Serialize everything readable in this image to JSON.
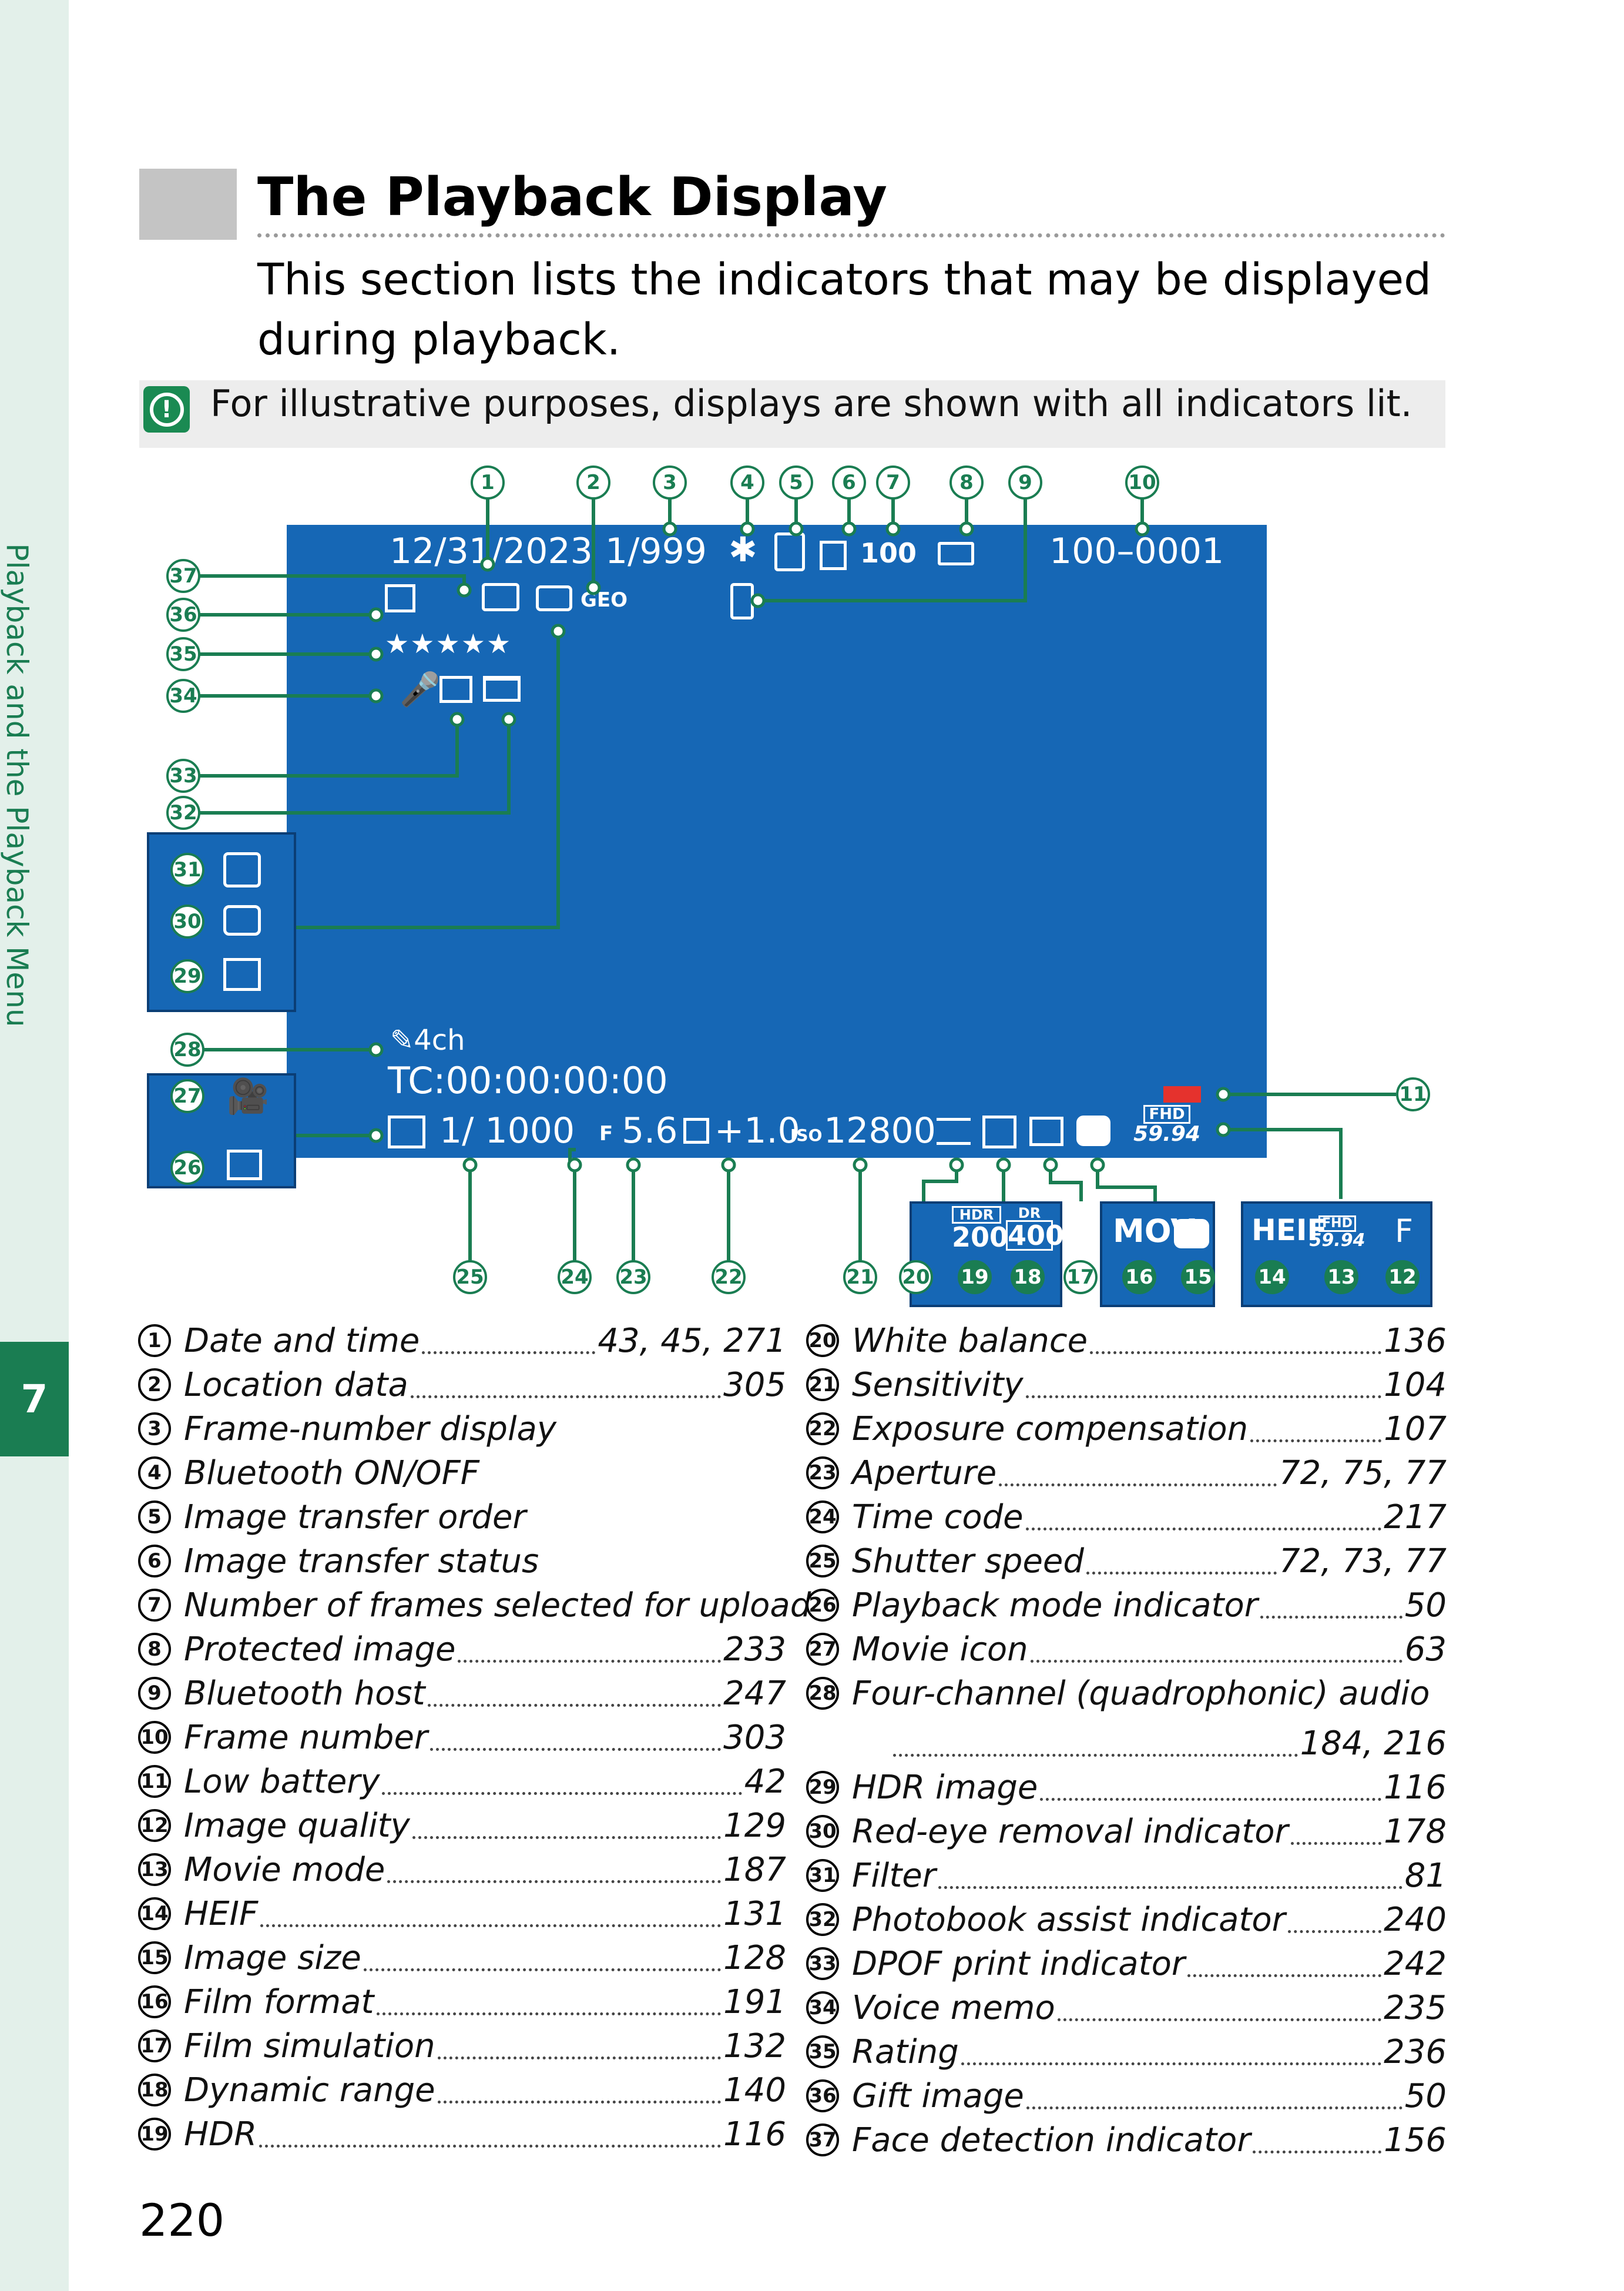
{
  "chapter": {
    "number": "7",
    "title": "Playback and the Playback Menu"
  },
  "section": {
    "title": "The Playback Display",
    "intro": "This section lists the indicators that may be displayed during playback.",
    "note": "For illustrative purposes, displays are shown with all indicators lit."
  },
  "screen": {
    "date": "12/31/2023",
    "frame_count": "1/999",
    "upload_count": "100",
    "frame_number": "100–0001",
    "geo": "GEO",
    "audio": "4ch",
    "timecode": "TC:00:00:00:00",
    "shutter": "1/ 1000",
    "aperture": "5.6",
    "exposure": "+1.0",
    "iso_label": "ISO",
    "iso": "12800",
    "movie_mode_top": "FHD",
    "movie_mode_bottom": "59.94",
    "stars": "★★★★★"
  },
  "insets": {
    "hdr_label": "HDR",
    "hdr_value": "200",
    "dr_label": "DR",
    "dr_value": "400",
    "film_format": "MOV",
    "heif": "HEIF",
    "quality": "F"
  },
  "callouts": [
    "1",
    "2",
    "3",
    "4",
    "5",
    "6",
    "7",
    "8",
    "9",
    "10",
    "11",
    "12",
    "13",
    "14",
    "15",
    "16",
    "17",
    "18",
    "19",
    "20",
    "21",
    "22",
    "23",
    "24",
    "25",
    "26",
    "27",
    "28",
    "29",
    "30",
    "31",
    "32",
    "33",
    "34",
    "35",
    "36",
    "37"
  ],
  "legend_left": [
    {
      "n": "1",
      "label": "Date and time",
      "pages": "43, 45, 271"
    },
    {
      "n": "2",
      "label": "Location data",
      "pages": "305"
    },
    {
      "n": "3",
      "label": "Frame-number display",
      "pages": ""
    },
    {
      "n": "4",
      "label": "Bluetooth ON/OFF",
      "pages": ""
    },
    {
      "n": "5",
      "label": "Image transfer order",
      "pages": ""
    },
    {
      "n": "6",
      "label": "Image transfer status",
      "pages": ""
    },
    {
      "n": "7",
      "label": "Number of frames selected for upload",
      "pages": ""
    },
    {
      "n": "8",
      "label": "Protected image",
      "pages": "233"
    },
    {
      "n": "9",
      "label": "Bluetooth host",
      "pages": "247"
    },
    {
      "n": "10",
      "label": "Frame number",
      "pages": "303"
    },
    {
      "n": "11",
      "label": "Low battery",
      "pages": "42"
    },
    {
      "n": "12",
      "label": "Image quality",
      "pages": "129"
    },
    {
      "n": "13",
      "label": "Movie mode",
      "pages": "187"
    },
    {
      "n": "14",
      "label": "HEIF",
      "pages": "131"
    },
    {
      "n": "15",
      "label": "Image size",
      "pages": "128"
    },
    {
      "n": "16",
      "label": "Film format",
      "pages": "191"
    },
    {
      "n": "17",
      "label": "Film simulation",
      "pages": "132"
    },
    {
      "n": "18",
      "label": "Dynamic range",
      "pages": "140"
    },
    {
      "n": "19",
      "label": "HDR",
      "pages": "116"
    }
  ],
  "legend_right": [
    {
      "n": "20",
      "label": "White balance",
      "pages": "136"
    },
    {
      "n": "21",
      "label": "Sensitivity",
      "pages": "104"
    },
    {
      "n": "22",
      "label": "Exposure compensation",
      "pages": "107"
    },
    {
      "n": "23",
      "label": "Aperture",
      "pages": "72, 75, 77"
    },
    {
      "n": "24",
      "label": "Time code",
      "pages": "217"
    },
    {
      "n": "25",
      "label": "Shutter speed",
      "pages": "72, 73, 77"
    },
    {
      "n": "26",
      "label": "Playback mode indicator",
      "pages": "50"
    },
    {
      "n": "27",
      "label": "Movie icon",
      "pages": "63"
    },
    {
      "n": "28",
      "label": "Four-channel (quadrophonic) audio",
      "pages": ""
    },
    {
      "n": "",
      "label": "",
      "pages": "184, 216"
    },
    {
      "n": "29",
      "label": "HDR image",
      "pages": "116"
    },
    {
      "n": "30",
      "label": "Red-eye removal indicator",
      "pages": "178"
    },
    {
      "n": "31",
      "label": "Filter",
      "pages": "81"
    },
    {
      "n": "32",
      "label": "Photobook assist indicator",
      "pages": "240"
    },
    {
      "n": "33",
      "label": "DPOF print indicator",
      "pages": "242"
    },
    {
      "n": "34",
      "label": "Voice memo",
      "pages": "235"
    },
    {
      "n": "35",
      "label": "Rating",
      "pages": "236"
    },
    {
      "n": "36",
      "label": "Gift image",
      "pages": "50"
    },
    {
      "n": "37",
      "label": "Face detection indicator",
      "pages": "156"
    }
  ],
  "page_number": "220"
}
